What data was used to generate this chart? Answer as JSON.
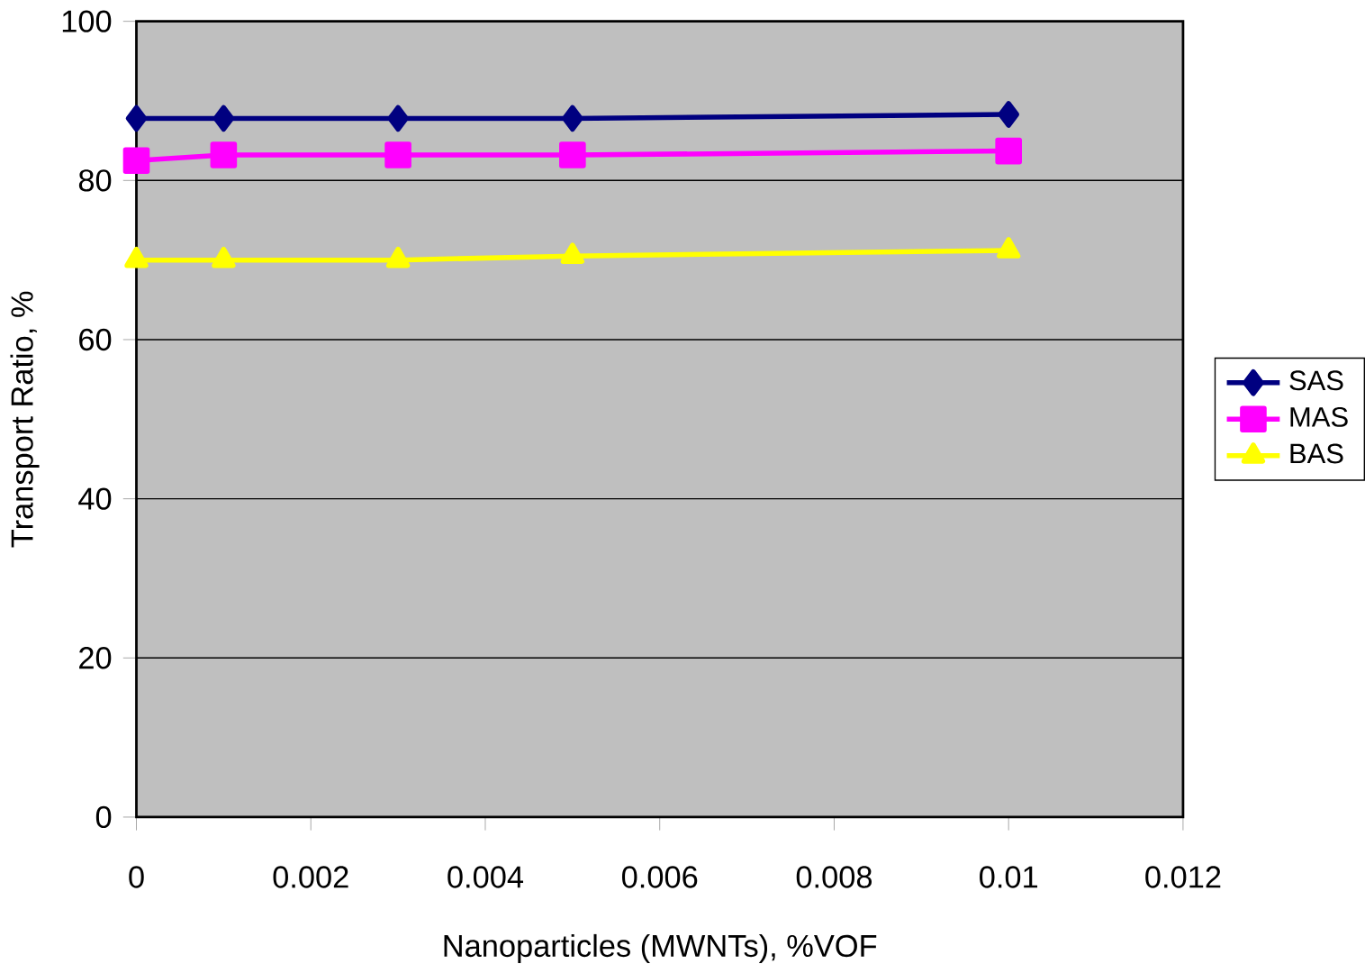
{
  "chart_data": {
    "type": "line",
    "xlabel": "Nanoparticles (MWNTs), %VOF",
    "ylabel": "Transport Ratio, %",
    "x": [
      0,
      0.001,
      0.003,
      0.005,
      0.01
    ],
    "series": [
      {
        "name": "SAS",
        "color": "#000080",
        "marker": "diamond",
        "values": [
          87.8,
          87.8,
          87.8,
          87.8,
          88.3
        ]
      },
      {
        "name": "MAS",
        "color": "#ff00ff",
        "marker": "square",
        "values": [
          82.5,
          83.2,
          83.2,
          83.2,
          83.7
        ]
      },
      {
        "name": "BAS",
        "color": "#ffff00",
        "marker": "triangle",
        "values": [
          70.0,
          70.0,
          70.0,
          70.5,
          71.2
        ]
      }
    ],
    "xlim": [
      0,
      0.012
    ],
    "xticks": [
      0,
      0.002,
      0.004,
      0.006,
      0.008,
      0.01,
      0.012
    ],
    "ylim": [
      0,
      100
    ],
    "yticks": [
      0,
      20,
      40,
      60,
      80,
      100
    ],
    "grid": "y",
    "legend": "right",
    "line_style": "solid"
  }
}
